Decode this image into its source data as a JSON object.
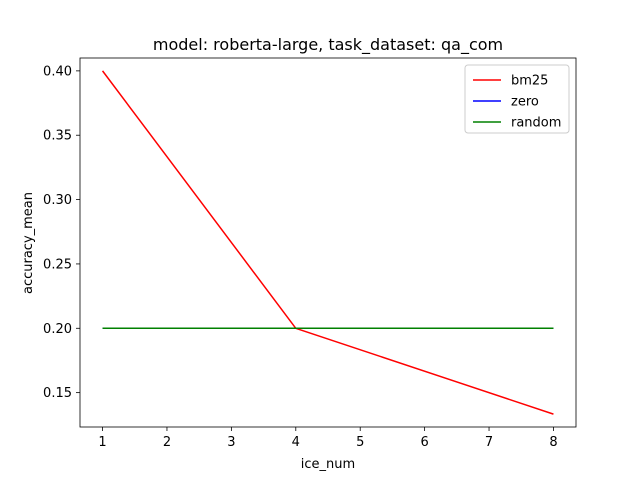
{
  "chart_data": {
    "type": "line",
    "title": "model: roberta-large, task_dataset: qa_com",
    "xlabel": "ice_num",
    "ylabel": "accuracy_mean",
    "x_ticks": [
      1,
      2,
      3,
      4,
      5,
      6,
      7,
      8
    ],
    "y_ticks": [
      0.15,
      0.2,
      0.25,
      0.3,
      0.35,
      0.4
    ],
    "xlim": [
      0.65,
      8.35
    ],
    "ylim": [
      0.1233,
      0.41
    ],
    "grid": false,
    "legend_position": "top-right",
    "series": [
      {
        "name": "bm25",
        "color": "#ff0000",
        "x": [
          1,
          4,
          8
        ],
        "y": [
          0.4,
          0.2,
          0.1333
        ]
      },
      {
        "name": "zero",
        "color": "#0000ff",
        "x": [
          1,
          4,
          8
        ],
        "y": [
          0.2,
          0.2,
          0.2
        ]
      },
      {
        "name": "random",
        "color": "#008000",
        "x": [
          1,
          4,
          8
        ],
        "y": [
          0.2,
          0.2,
          0.2
        ]
      }
    ]
  }
}
